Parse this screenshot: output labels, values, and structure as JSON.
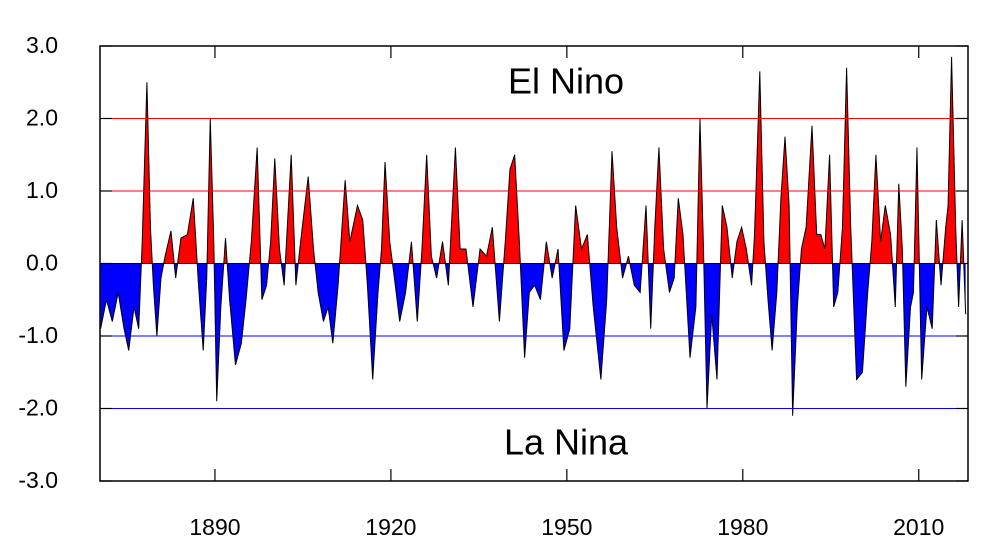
{
  "chart_data": {
    "type": "area",
    "annotations": [
      {
        "text": "El Nino",
        "color": "#ff0000"
      },
      {
        "text": "La Nina",
        "color": "#0000ff"
      }
    ],
    "x": [
      1870.5,
      1871.5,
      1872.5,
      1873.5,
      1874.5,
      1875.3,
      1876.2,
      1877.0,
      1877.6,
      1878.4,
      1879.0,
      1879.5,
      1880.1,
      1880.8,
      1881.5,
      1882.5,
      1883.3,
      1884.2,
      1885.3,
      1886.3,
      1887.2,
      1888.0,
      1888.6,
      1889.2,
      1889.8,
      1890.3,
      1891.0,
      1891.8,
      1892.5,
      1893.5,
      1894.5,
      1895.3,
      1896.2,
      1897.2,
      1898.0,
      1898.8,
      1899.5,
      1900.2,
      1901.0,
      1901.8,
      1903.0,
      1903.8,
      1904.6,
      1905.9,
      1906.8,
      1907.6,
      1908.5,
      1909.3,
      1910.1,
      1911.0,
      1912.2,
      1913.0,
      1914.3,
      1915.2,
      1916.0,
      1916.9,
      1917.8,
      1918.4,
      1919.0,
      1919.8,
      1920.6,
      1921.5,
      1922.5,
      1923.5,
      1924.5,
      1925.3,
      1926.1,
      1926.9,
      1927.8,
      1928.8,
      1929.8,
      1931.0,
      1931.8,
      1932.8,
      1934.0,
      1935.2,
      1936.3,
      1937.3,
      1938.5,
      1939.5,
      1940.3,
      1941.1,
      1941.9,
      1942.8,
      1943.6,
      1944.5,
      1945.5,
      1946.5,
      1947.5,
      1948.5,
      1949.5,
      1950.5,
      1951.5,
      1952.5,
      1953.5,
      1954.5,
      1955.8,
      1956.8,
      1957.7,
      1958.5,
      1959.5,
      1960.5,
      1961.5,
      1962.5,
      1963.5,
      1964.3,
      1965.0,
      1965.7,
      1966.5,
      1967.5,
      1968.3,
      1969.0,
      1969.8,
      1971.0,
      1972.0,
      1972.7,
      1973.3,
      1973.9,
      1974.7,
      1975.6,
      1976.5,
      1977.3,
      1978.2,
      1979.0,
      1979.8,
      1980.6,
      1981.5,
      1982.0,
      1982.9,
      1983.6,
      1984.3,
      1985.0,
      1985.8,
      1986.5,
      1987.2,
      1987.9,
      1988.5,
      1989.3,
      1990.0,
      1990.8,
      1991.8,
      1992.6,
      1993.3,
      1994.0,
      1994.8,
      1995.5,
      1996.2,
      1997.0,
      1997.7,
      1998.4,
      1999.4,
      2000.4,
      2001.3,
      2002.0,
      2002.7,
      2003.5,
      2004.3,
      2005.2,
      2006.0,
      2006.6,
      2007.2,
      2007.8,
      2008.6,
      2009.1,
      2009.7,
      2010.5,
      2011.4,
      2012.3,
      2013.0,
      2013.8,
      2014.6,
      2015.0,
      2015.6,
      2016.3,
      2016.8,
      2017.4,
      2018.0
    ],
    "values": [
      -0.9,
      -0.5,
      -0.8,
      -0.4,
      -0.9,
      -1.2,
      -0.6,
      -0.9,
      0.3,
      2.5,
      0.5,
      -0.3,
      -1.0,
      -0.2,
      0.1,
      0.45,
      -0.2,
      0.35,
      0.4,
      0.9,
      -0.3,
      -1.2,
      -0.2,
      2.0,
      0.3,
      -1.9,
      -0.6,
      0.35,
      -0.5,
      -1.4,
      -1.1,
      -0.5,
      0.3,
      1.6,
      -0.5,
      -0.3,
      0.3,
      1.45,
      0.2,
      -0.3,
      1.5,
      -0.3,
      0.3,
      1.2,
      0.2,
      -0.4,
      -0.8,
      -0.6,
      -1.1,
      -0.3,
      1.15,
      0.3,
      0.8,
      0.6,
      -0.3,
      -1.6,
      -0.4,
      0.2,
      1.4,
      0.3,
      -0.2,
      -0.8,
      -0.4,
      0.3,
      -0.8,
      0.2,
      1.5,
      0.1,
      -0.2,
      0.3,
      -0.3,
      1.6,
      0.2,
      0.2,
      -0.6,
      0.2,
      0.1,
      0.5,
      -0.8,
      0.3,
      1.3,
      1.5,
      0.3,
      -1.3,
      -0.4,
      -0.3,
      -0.5,
      0.3,
      -0.2,
      0.2,
      -1.2,
      -0.9,
      0.8,
      0.2,
      0.4,
      -0.6,
      -1.6,
      -0.5,
      1.55,
      0.5,
      -0.2,
      0.1,
      -0.3,
      -0.4,
      0.8,
      -0.9,
      0.5,
      1.6,
      0.2,
      -0.4,
      -0.2,
      0.9,
      0.4,
      -1.3,
      -0.6,
      2.0,
      0.2,
      -2.0,
      -0.7,
      -1.6,
      0.8,
      0.5,
      -0.2,
      0.3,
      0.5,
      0.2,
      -0.3,
      0.4,
      2.65,
      0.3,
      -0.5,
      -1.2,
      -0.4,
      0.9,
      1.75,
      0.8,
      -2.1,
      -0.6,
      0.2,
      0.5,
      1.9,
      0.4,
      0.4,
      0.2,
      1.5,
      -0.6,
      -0.4,
      0.5,
      2.7,
      0.5,
      -1.6,
      -1.5,
      -0.4,
      0.3,
      1.5,
      0.3,
      0.8,
      0.4,
      -0.6,
      1.1,
      0.2,
      -1.7,
      -0.6,
      -0.4,
      1.6,
      -1.6,
      -0.6,
      -0.9,
      0.6,
      -0.3,
      0.5,
      0.8,
      2.85,
      0.5,
      -0.6,
      0.6,
      -0.7
    ],
    "positive_color": "#ff0000",
    "negative_color": "#0000ff",
    "reference_lines": [
      {
        "value": 2,
        "color": "#ff0000"
      },
      {
        "value": 1,
        "color": "#ff0000"
      },
      {
        "value": -1,
        "color": "#0000ff"
      },
      {
        "value": -2,
        "color": "#0000ff"
      }
    ],
    "xlim": [
      1870.4,
      2018.4
    ],
    "xticks": [
      1890,
      1920,
      1950,
      1980,
      2010
    ],
    "ylim": [
      -3,
      3
    ],
    "yticks": [
      {
        "value": -3,
        "label": "-3.0"
      },
      {
        "value": -2,
        "label": "-2.0"
      },
      {
        "value": -1,
        "label": "-1.0"
      },
      {
        "value": 0,
        "label": "0.0"
      },
      {
        "value": 1,
        "label": "1.0"
      },
      {
        "value": 2,
        "label": "2.0"
      },
      {
        "value": 3,
        "label": "3.0"
      }
    ]
  }
}
